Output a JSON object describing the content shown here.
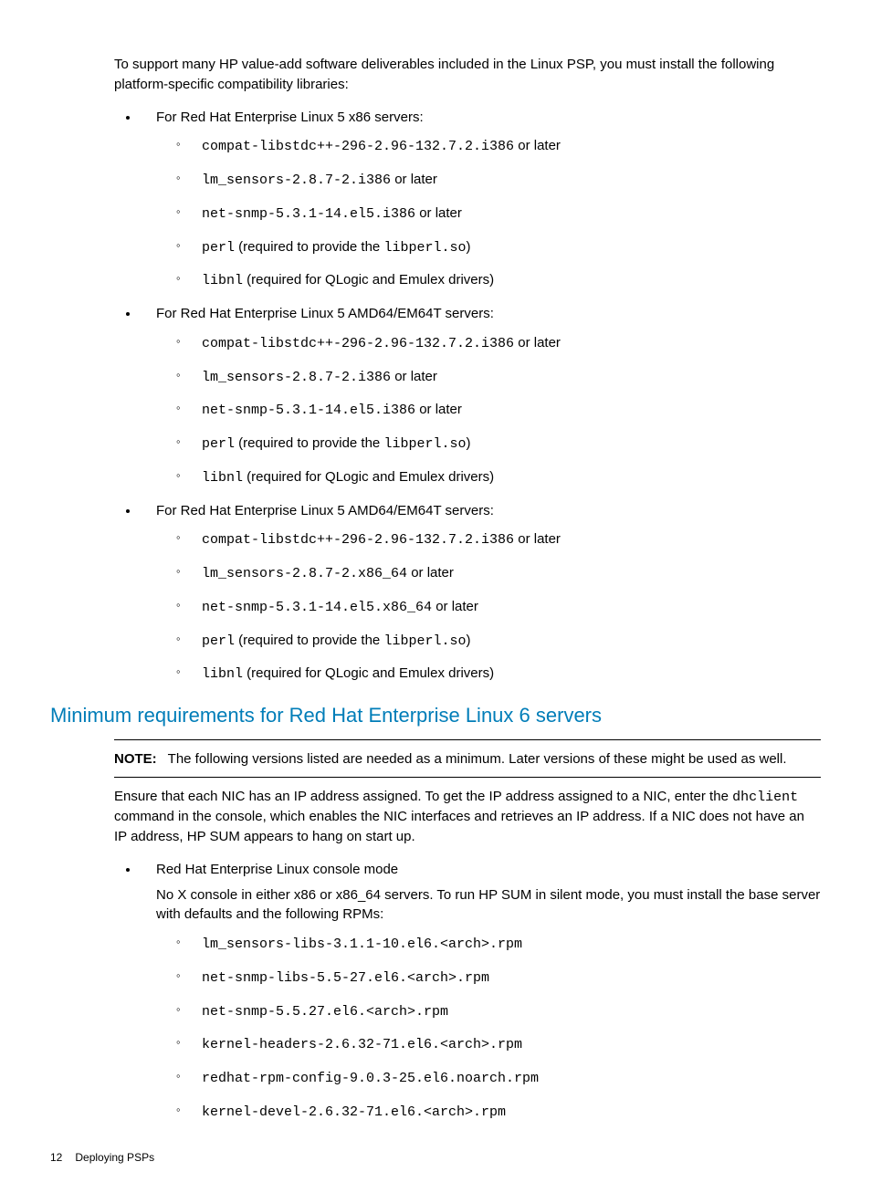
{
  "intro": "To support many HP value-add software deliverables included in the Linux PSP, you must install the following platform-specific compatibility libraries:",
  "sections": [
    {
      "title": "For Red Hat Enterprise Linux 5 x86 servers:",
      "items": [
        {
          "code": "compat-libstdc++-296-2.96-132.7.2.i386",
          "suffix": " or later"
        },
        {
          "code": "lm_sensors-2.8.7-2.i386",
          "suffix": " or later"
        },
        {
          "code": "net-snmp-5.3.1-14.el5.i386",
          "suffix": " or later"
        },
        {
          "code": "perl",
          "mid": " (required to provide the ",
          "code2": "libperl.so",
          "suffix": ")"
        },
        {
          "code": "libnl",
          "suffix": " (required for QLogic and Emulex drivers)"
        }
      ]
    },
    {
      "title": "For Red Hat Enterprise Linux 5 AMD64/EM64T servers:",
      "items": [
        {
          "code": "compat-libstdc++-296-2.96-132.7.2.i386",
          "suffix": " or later"
        },
        {
          "code": "lm_sensors-2.8.7-2.i386",
          "suffix": " or later"
        },
        {
          "code": "net-snmp-5.3.1-14.el5.i386",
          "suffix": " or later"
        },
        {
          "code": "perl",
          "mid": " (required to provide the ",
          "code2": "libperl.so",
          "suffix": ")"
        },
        {
          "code": "libnl",
          "suffix": " (required for QLogic and Emulex drivers)"
        }
      ]
    },
    {
      "title": "For Red Hat Enterprise Linux 5 AMD64/EM64T servers:",
      "items": [
        {
          "code": "compat-libstdc++-296-2.96-132.7.2.i386",
          "suffix": " or later"
        },
        {
          "code": "lm_sensors-2.8.7-2.x86_64",
          "suffix": " or later"
        },
        {
          "code": "net-snmp-5.3.1-14.el5.x86_64",
          "suffix": " or later"
        },
        {
          "code": "perl",
          "mid": " (required to provide the ",
          "code2": "libperl.so",
          "suffix": ")"
        },
        {
          "code": "libnl",
          "suffix": " (required for QLogic and Emulex drivers)"
        }
      ]
    }
  ],
  "heading2": "Minimum requirements for Red Hat Enterprise Linux 6 servers",
  "note_label": "NOTE:",
  "note_text": "The following versions listed are needed as a minimum. Later versions of these might be used as well.",
  "nic_para_pre": "Ensure that each NIC has an IP address assigned. To get the IP address assigned to a NIC, enter the ",
  "nic_code": "dhclient",
  "nic_para_post": " command in the console, which enables the NIC interfaces and retrieves an IP address. If a NIC does not have an IP address, HP SUM appears to hang on start up.",
  "console_section": {
    "title": "Red Hat Enterprise Linux console mode",
    "desc": "No X console in either x86 or x86_64 servers. To run HP SUM in silent mode, you must install the base server with defaults and the following RPMs:",
    "items": [
      "lm_sensors-libs-3.1.1-10.el6.<arch>.rpm",
      "net-snmp-libs-5.5-27.el6.<arch>.rpm",
      "net-snmp-5.5.27.el6.<arch>.rpm",
      "kernel-headers-2.6.32-71.el6.<arch>.rpm",
      "redhat-rpm-config-9.0.3-25.el6.noarch.rpm",
      "kernel-devel-2.6.32-71.el6.<arch>.rpm"
    ]
  },
  "footer_page": "12",
  "footer_text": "Deploying PSPs"
}
